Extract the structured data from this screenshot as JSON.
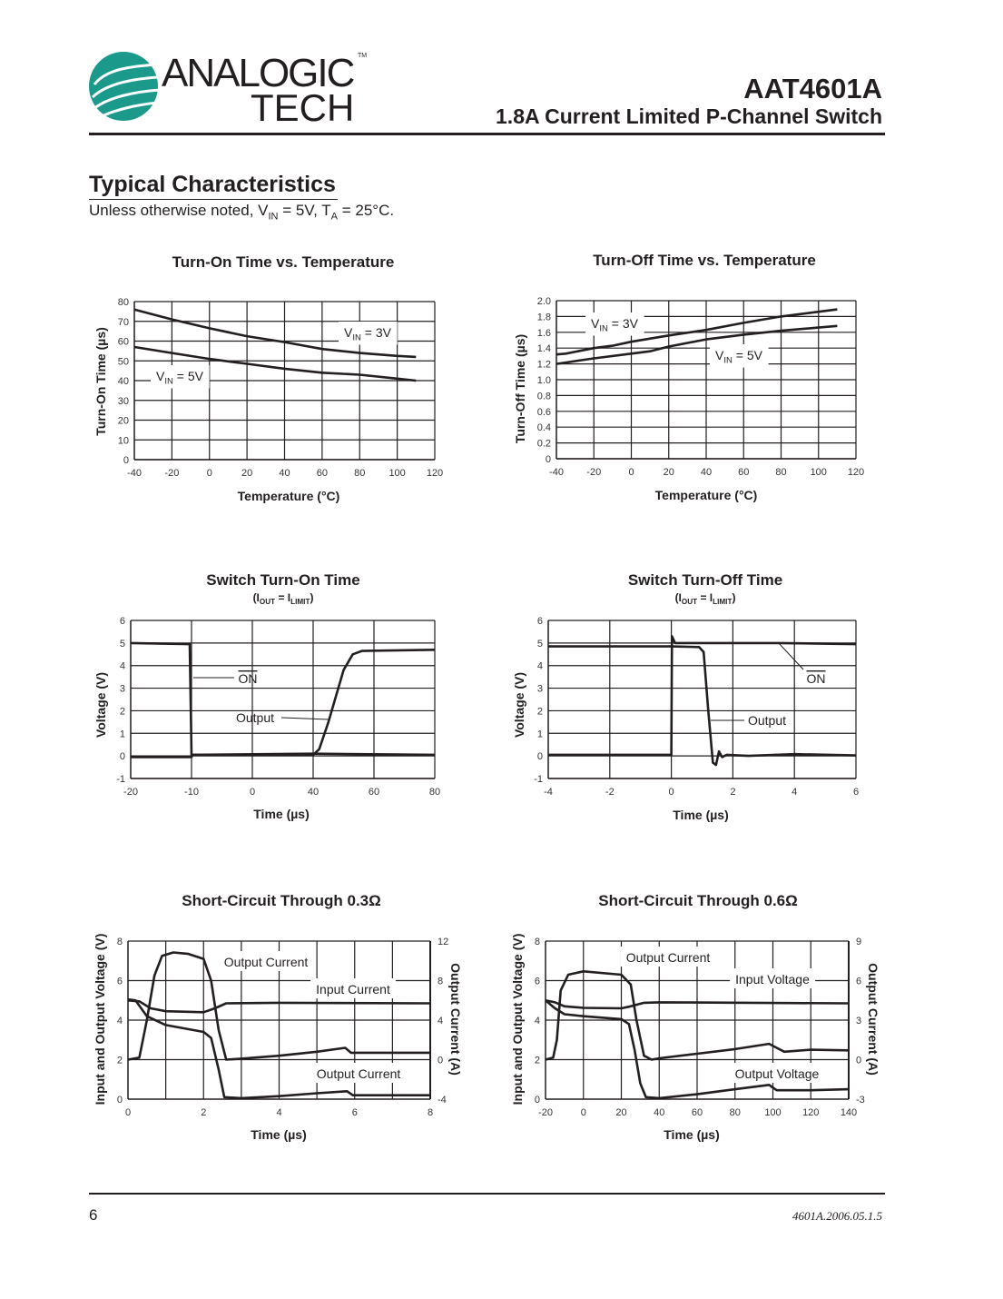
{
  "header": {
    "logo": {
      "line1": "ANALOGIC",
      "line2": "TECH",
      "tm": "TM",
      "color": "#1b9a8c"
    },
    "part_number": "AAT4601A",
    "description": "1.8A Current Limited P-Channel Switch"
  },
  "section": {
    "title": "Typical Characteristics",
    "note": [
      {
        "t": "Unless otherwise noted, V"
      },
      {
        "t": "IN",
        "sub": true
      },
      {
        "t": " = 5V, T"
      },
      {
        "t": "A",
        "sub": true
      },
      {
        "t": " = 25°C."
      }
    ]
  },
  "footer": {
    "page": "6",
    "doc_id": "4601A.2006.05.1.5"
  },
  "chart_data": [
    {
      "type": "line",
      "title": "Turn-On Time vs. Temperature",
      "xlabel": "Temperature (°C)",
      "ylabel": "Turn-On Time (µs)",
      "xticks": [
        -40,
        -20,
        0,
        20,
        40,
        60,
        80,
        100,
        120
      ],
      "yticks": [
        0,
        10,
        20,
        30,
        40,
        50,
        60,
        70,
        80
      ],
      "xlim": [
        -40,
        120
      ],
      "ylim": [
        0,
        80
      ],
      "grid": true,
      "series": [
        {
          "name": [
            {
              "t": "V"
            },
            {
              "t": "IN",
              "sub": true
            },
            {
              "t": " = 3V"
            }
          ],
          "points": [
            [
              -40,
              76
            ],
            [
              -20,
              71
            ],
            [
              0,
              66.5
            ],
            [
              20,
              62.5
            ],
            [
              40,
              59.5
            ],
            [
              60,
              56
            ],
            [
              80,
              54
            ],
            [
              100,
              52.5
            ],
            [
              110,
              52
            ]
          ]
        },
        {
          "name": [
            {
              "t": "V"
            },
            {
              "t": "IN",
              "sub": true
            },
            {
              "t": " = 5V"
            }
          ],
          "points": [
            [
              -40,
              57
            ],
            [
              -20,
              54
            ],
            [
              0,
              51
            ],
            [
              20,
              48.5
            ],
            [
              40,
              46
            ],
            [
              60,
              44
            ],
            [
              80,
              43
            ],
            [
              100,
              41
            ],
            [
              110,
              40
            ]
          ]
        }
      ]
    },
    {
      "type": "line",
      "title": "Turn-Off Time vs. Temperature",
      "xlabel": "Temperature (°C)",
      "ylabel": "Turn-Off Time (µs)",
      "xticks": [
        -40,
        -20,
        0,
        20,
        40,
        60,
        80,
        100,
        120
      ],
      "yticks": [
        "0",
        "0.2",
        "0.4",
        "0.6",
        "0.8",
        "1.0",
        "1.2",
        "1.4",
        "1.6",
        "1.8",
        "2.0"
      ],
      "xlim": [
        -40,
        120
      ],
      "ylim": [
        0,
        2.0
      ],
      "grid": true,
      "series": [
        {
          "name": [
            {
              "t": "V"
            },
            {
              "t": "IN",
              "sub": true
            },
            {
              "t": " = 3V"
            }
          ],
          "points": [
            [
              -40,
              1.32
            ],
            [
              -35,
              1.33
            ],
            [
              -20,
              1.4
            ],
            [
              -10,
              1.43
            ],
            [
              0,
              1.48
            ],
            [
              20,
              1.56
            ],
            [
              40,
              1.63
            ],
            [
              60,
              1.72
            ],
            [
              80,
              1.8
            ],
            [
              100,
              1.86
            ],
            [
              110,
              1.89
            ]
          ]
        },
        {
          "name": [
            {
              "t": "V"
            },
            {
              "t": "IN",
              "sub": true
            },
            {
              "t": " = 5V"
            }
          ],
          "points": [
            [
              -40,
              1.2
            ],
            [
              -20,
              1.27
            ],
            [
              0,
              1.33
            ],
            [
              10,
              1.36
            ],
            [
              20,
              1.42
            ],
            [
              40,
              1.51
            ],
            [
              60,
              1.57
            ],
            [
              80,
              1.62
            ],
            [
              100,
              1.66
            ],
            [
              110,
              1.68
            ]
          ]
        }
      ]
    },
    {
      "type": "line",
      "title": "Switch Turn-On Time",
      "subtitle": [
        {
          "t": "(I"
        },
        {
          "t": "OUT",
          "sub": true
        },
        {
          "t": " = I"
        },
        {
          "t": "LIMIT",
          "sub": true
        },
        {
          "t": ")"
        }
      ],
      "xlabel": "Time (µs)",
      "ylabel": "Voltage (V)",
      "xticks": [
        -20,
        -10,
        0,
        40,
        60,
        80
      ],
      "yticks": [
        -1,
        0,
        1,
        2,
        3,
        4,
        5,
        6
      ],
      "xlim": [
        -20,
        80
      ],
      "ylim": [
        -1,
        6
      ],
      "grid": true,
      "series": [
        {
          "name": [
            {
              "t": "ON",
              "overline": true
            }
          ],
          "points": [
            [
              -20,
              5
            ],
            [
              -10.3,
              4.95
            ],
            [
              -10,
              0.05
            ],
            [
              40,
              0.1
            ],
            [
              80,
              0.05
            ]
          ]
        },
        {
          "name": [
            {
              "t": "Output"
            }
          ],
          "points": [
            [
              -20,
              -0.05
            ],
            [
              -10,
              -0.05
            ],
            [
              -9.8,
              0.05
            ],
            [
              40,
              0.05
            ],
            [
              42,
              0.3
            ],
            [
              45,
              1.5
            ],
            [
              50,
              3.8
            ],
            [
              53,
              4.5
            ],
            [
              56,
              4.65
            ],
            [
              80,
              4.7
            ]
          ]
        }
      ]
    },
    {
      "type": "line",
      "title": "Switch Turn-Off Time",
      "subtitle": [
        {
          "t": "(I"
        },
        {
          "t": "OUT",
          "sub": true
        },
        {
          "t": " = I"
        },
        {
          "t": "LIMIT",
          "sub": true
        },
        {
          "t": ")"
        }
      ],
      "xlabel": "Time (µs)",
      "ylabel": "Voltage (V)",
      "xticks": [
        -4,
        -2,
        0,
        2,
        4,
        6
      ],
      "yticks": [
        -1,
        0,
        1,
        2,
        3,
        4,
        5,
        6
      ],
      "xlim": [
        -4,
        6
      ],
      "ylim": [
        -1,
        6
      ],
      "grid": true,
      "series": [
        {
          "name": [
            {
              "t": "ON",
              "overline": true
            }
          ],
          "points": [
            [
              -4,
              0.05
            ],
            [
              0,
              0.05
            ],
            [
              0.02,
              5.3
            ],
            [
              0.12,
              5.0
            ],
            [
              3.5,
              5.0
            ],
            [
              6,
              4.95
            ]
          ]
        },
        {
          "name": [
            {
              "t": "Output"
            }
          ],
          "points": [
            [
              -4,
              4.85
            ],
            [
              0,
              4.85
            ],
            [
              0.9,
              4.82
            ],
            [
              1.05,
              4.6
            ],
            [
              1.2,
              2
            ],
            [
              1.35,
              -0.3
            ],
            [
              1.45,
              -0.4
            ],
            [
              1.55,
              0.2
            ],
            [
              1.65,
              -0.05
            ],
            [
              1.8,
              0.05
            ],
            [
              2.5,
              0
            ],
            [
              4,
              0.08
            ],
            [
              6,
              0.02
            ]
          ]
        }
      ]
    },
    {
      "type": "line",
      "title": "Short-Circuit Through 0.3Ω",
      "xlabel": "Time (µs)",
      "ylabel": "Input and Output Voltage (V)",
      "ylabel_right": "Output Current (A)",
      "xticks": [
        0,
        2,
        4,
        6,
        8
      ],
      "xgrid_step": 1,
      "yticks": [
        0,
        2,
        4,
        6,
        8
      ],
      "yticks_right": [
        -4,
        0,
        4,
        8,
        12
      ],
      "xlim": [
        0,
        8
      ],
      "ylim": [
        0,
        8
      ],
      "ylim_right": [
        -4,
        12
      ],
      "grid": true,
      "annotations": [
        "Output Current",
        "Input Current",
        "Output Current"
      ],
      "series": [
        {
          "axis": "right",
          "points": [
            [
              0,
              0
            ],
            [
              0.3,
              0.2
            ],
            [
              0.5,
              4
            ],
            [
              0.7,
              8.5
            ],
            [
              0.9,
              10.5
            ],
            [
              1.2,
              10.85
            ],
            [
              1.6,
              10.7
            ],
            [
              2.0,
              10.2
            ],
            [
              2.2,
              8
            ],
            [
              2.4,
              3
            ],
            [
              2.6,
              0
            ],
            [
              3,
              0.1
            ],
            [
              4,
              0.4
            ],
            [
              5,
              0.8
            ],
            [
              5.75,
              1.2
            ],
            [
              5.9,
              0.7
            ],
            [
              6.5,
              0.7
            ],
            [
              8,
              0.7
            ]
          ]
        },
        {
          "axis": "left",
          "points": [
            [
              0,
              5
            ],
            [
              0.3,
              4.95
            ],
            [
              0.6,
              4.6
            ],
            [
              1,
              4.45
            ],
            [
              2,
              4.4
            ],
            [
              2.3,
              4.6
            ],
            [
              2.6,
              4.85
            ],
            [
              4,
              4.88
            ],
            [
              8,
              4.85
            ]
          ]
        },
        {
          "axis": "left",
          "points": [
            [
              0,
              5.05
            ],
            [
              0.2,
              5.0
            ],
            [
              0.5,
              4.2
            ],
            [
              1,
              3.75
            ],
            [
              2,
              3.4
            ],
            [
              2.2,
              3.1
            ],
            [
              2.4,
              1.5
            ],
            [
              2.55,
              0.1
            ],
            [
              3,
              0.05
            ],
            [
              4,
              0.15
            ],
            [
              5,
              0.3
            ],
            [
              5.8,
              0.4
            ],
            [
              5.95,
              0.2
            ],
            [
              8,
              0.2
            ]
          ]
        }
      ]
    },
    {
      "type": "line",
      "title": "Short-Circuit Through 0.6Ω",
      "xlabel": "Time (µs)",
      "ylabel": "Input and Output Voltage (V)",
      "ylabel_right": "Output Current (A)",
      "xticks": [
        -20,
        0,
        20,
        40,
        60,
        80,
        100,
        120,
        140
      ],
      "xgrid_step": 20,
      "yticks": [
        0,
        2,
        4,
        6,
        8
      ],
      "yticks_right": [
        -3,
        0,
        3,
        6,
        9
      ],
      "xlim": [
        -20,
        140
      ],
      "ylim": [
        0,
        8
      ],
      "ylim_right": [
        -3,
        9
      ],
      "grid": true,
      "annotations": [
        "Output Current",
        "Input Voltage",
        "Output Voltage"
      ],
      "series": [
        {
          "axis": "right",
          "points": [
            [
              -20,
              0
            ],
            [
              -16,
              0.15
            ],
            [
              -14,
              1.5
            ],
            [
              -12,
              5.25
            ],
            [
              -8,
              6.45
            ],
            [
              0,
              6.7
            ],
            [
              20,
              6.45
            ],
            [
              25,
              5.7
            ],
            [
              28,
              3
            ],
            [
              32,
              0.3
            ],
            [
              36,
              0
            ],
            [
              40,
              0.1
            ],
            [
              60,
              0.45
            ],
            [
              80,
              0.8
            ],
            [
              98,
              1.2
            ],
            [
              102,
              0.9
            ],
            [
              106,
              0.6
            ],
            [
              120,
              0.75
            ],
            [
              140,
              0.7
            ]
          ]
        },
        {
          "axis": "left",
          "points": [
            [
              -20,
              5
            ],
            [
              -15,
              4.9
            ],
            [
              -10,
              4.7
            ],
            [
              0,
              4.62
            ],
            [
              20,
              4.6
            ],
            [
              25,
              4.7
            ],
            [
              32,
              4.88
            ],
            [
              40,
              4.9
            ],
            [
              140,
              4.85
            ]
          ]
        },
        {
          "axis": "left",
          "points": [
            [
              -20,
              5
            ],
            [
              -15,
              4.6
            ],
            [
              -10,
              4.3
            ],
            [
              0,
              4.2
            ],
            [
              20,
              4.05
            ],
            [
              24,
              3.8
            ],
            [
              27,
              2.5
            ],
            [
              30,
              0.8
            ],
            [
              33,
              0.1
            ],
            [
              40,
              0.05
            ],
            [
              60,
              0.25
            ],
            [
              80,
              0.5
            ],
            [
              98,
              0.72
            ],
            [
              102,
              0.45
            ],
            [
              120,
              0.45
            ],
            [
              140,
              0.5
            ]
          ]
        }
      ]
    }
  ]
}
